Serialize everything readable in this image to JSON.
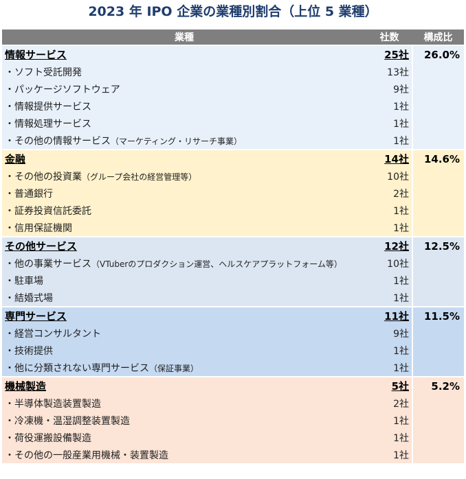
{
  "title": "2023 年 IPO 企業の業種別割合（上位 5 業種）",
  "header": {
    "name": "業種",
    "count": "社数",
    "ratio": "構成比"
  },
  "groups": [
    {
      "name": "情報サービス",
      "count": "25社",
      "ratio": "26.0%",
      "color": "#e8f0fa",
      "items": [
        {
          "name": "・ソフト受託開発",
          "note": "",
          "count": "13社"
        },
        {
          "name": "・パッケージソフトウェア",
          "note": "",
          "count": "9社"
        },
        {
          "name": "・情報提供サービス",
          "note": "",
          "count": "1社"
        },
        {
          "name": "・情報処理サービス",
          "note": "",
          "count": "1社"
        },
        {
          "name": "・その他の情報サービス",
          "note": "（マーケティング・リサーチ事業）",
          "count": "1社"
        }
      ]
    },
    {
      "name": "金融",
      "count": "14社",
      "ratio": "14.6%",
      "color": "#fff2cc",
      "items": [
        {
          "name": "・その他の投資業",
          "note": "（グループ会社の経営管理等）",
          "count": "10社"
        },
        {
          "name": "・普通銀行",
          "note": "",
          "count": "2社"
        },
        {
          "name": "・証券投資信託委託",
          "note": "",
          "count": "1社"
        },
        {
          "name": "・信用保証機関",
          "note": "",
          "count": "1社"
        }
      ]
    },
    {
      "name": "その他サービス",
      "count": "12社",
      "ratio": "12.5%",
      "color": "#dce6f2",
      "items": [
        {
          "name": "・他の事業サービス",
          "note": "（VTuberのプロダクション運営、ヘルスケアプラットフォーム等）",
          "count": "10社"
        },
        {
          "name": "・駐車場",
          "note": "",
          "count": "1社"
        },
        {
          "name": "・結婚式場",
          "note": "",
          "count": "1社"
        }
      ]
    },
    {
      "name": "専門サービス",
      "count": "11社",
      "ratio": "11.5%",
      "color": "#c5d9f1",
      "items": [
        {
          "name": "・経営コンサルタント",
          "note": "",
          "count": "9社"
        },
        {
          "name": "・技術提供",
          "note": "",
          "count": "1社"
        },
        {
          "name": "・他に分類されない専門サービス",
          "note": "（保証事業）",
          "count": "1社"
        }
      ]
    },
    {
      "name": "機械製造",
      "count": "5社",
      "ratio": "5.2%",
      "color": "#fce4d6",
      "items": [
        {
          "name": "・半導体製造装置製造",
          "note": "",
          "count": "2社"
        },
        {
          "name": "・冷凍機・温湿調整装置製造",
          "note": "",
          "count": "1社"
        },
        {
          "name": "・荷役運搬設備製造",
          "note": "",
          "count": "1社"
        },
        {
          "name": "・その他の一般産業用機械・装置製造",
          "note": "",
          "count": "1社"
        }
      ]
    }
  ]
}
